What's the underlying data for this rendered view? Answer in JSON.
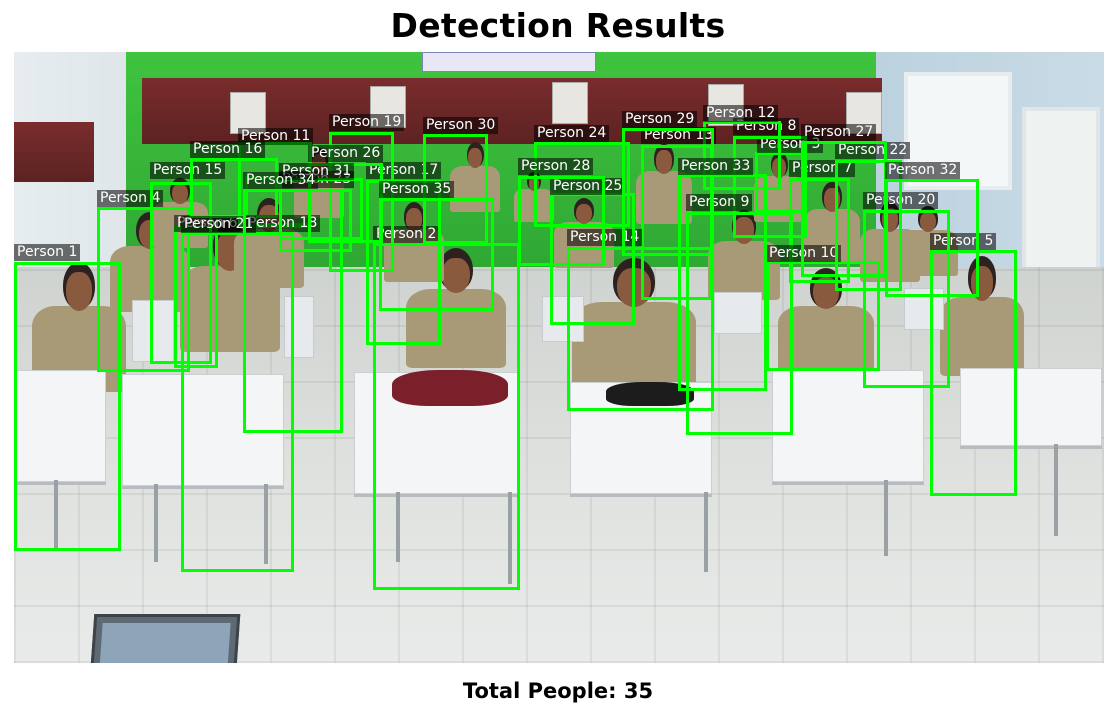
{
  "title": "Detection Results",
  "footer_label": "Total People: 35",
  "box_color": "#00ff00",
  "detections": [
    {
      "label": "Person 1"
    },
    {
      "label": "Person 2"
    },
    {
      "label": "Person 3"
    },
    {
      "label": "Person 4"
    },
    {
      "label": "Person 5"
    },
    {
      "label": "Person 6"
    },
    {
      "label": "Person 7"
    },
    {
      "label": "Person 8"
    },
    {
      "label": "Person 9"
    },
    {
      "label": "Person 10"
    },
    {
      "label": "Person 11"
    },
    {
      "label": "Person 12"
    },
    {
      "label": "Person 13"
    },
    {
      "label": "Person 14"
    },
    {
      "label": "Person 15"
    },
    {
      "label": "Person 16"
    },
    {
      "label": "Person 17"
    },
    {
      "label": "Person 18"
    },
    {
      "label": "Person 19"
    },
    {
      "label": "Person 20"
    },
    {
      "label": "Person 21"
    },
    {
      "label": "Person 22"
    },
    {
      "label": "Person 23"
    },
    {
      "label": "Person 24"
    },
    {
      "label": "Person 25"
    },
    {
      "label": "Person 26"
    },
    {
      "label": "Person 27"
    },
    {
      "label": "Person 28"
    },
    {
      "label": "Person 29"
    },
    {
      "label": "Person 30"
    },
    {
      "label": "Person 31"
    },
    {
      "label": "Person 32"
    },
    {
      "label": "Person 33"
    },
    {
      "label": "Person 34"
    },
    {
      "label": "Person 35"
    }
  ]
}
